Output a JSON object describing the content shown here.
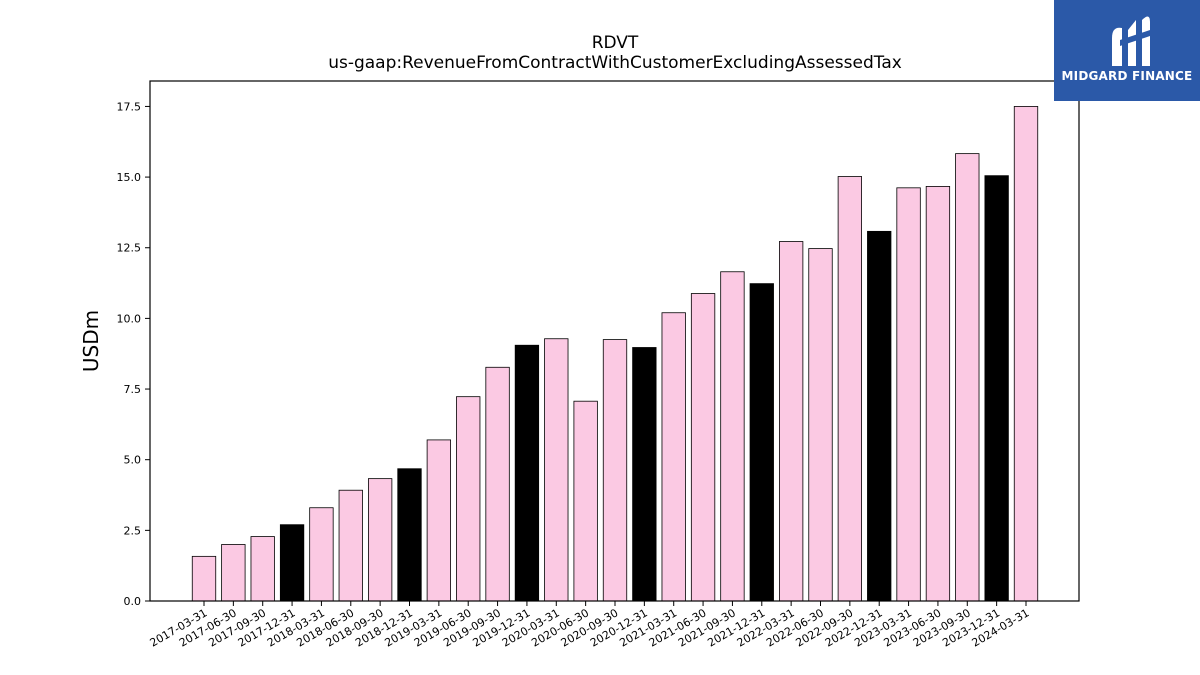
{
  "chart_data": {
    "type": "bar",
    "title": "RDVT",
    "subtitle": "us-gaap:RevenueFromContractWithCustomerExcludingAssessedTax",
    "ylabel": "USDm",
    "xlabel": "",
    "ylim": [
      0,
      18.4
    ],
    "yticks": [
      "0.0",
      "2.5",
      "5.0",
      "7.5",
      "10.0",
      "12.5",
      "15.0",
      "17.5"
    ],
    "grid": false,
    "colors": {
      "quarter": "#fbc9e3",
      "fiscal_year_end": "#000000",
      "edge": "#000000"
    },
    "categories": [
      "2017-03-31",
      "2017-06-30",
      "2017-09-30",
      "2017-12-31",
      "2018-03-31",
      "2018-06-30",
      "2018-09-30",
      "2018-12-31",
      "2019-03-31",
      "2019-06-30",
      "2019-09-30",
      "2019-12-31",
      "2020-03-31",
      "2020-06-30",
      "2020-09-30",
      "2020-12-31",
      "2021-03-31",
      "2021-06-30",
      "2021-09-30",
      "2021-12-31",
      "2022-03-31",
      "2022-06-30",
      "2022-09-30",
      "2022-12-31",
      "2023-03-31",
      "2023-06-30",
      "2023-09-30",
      "2023-12-31",
      "2024-03-31"
    ],
    "values": [
      1.58,
      2.0,
      2.28,
      2.7,
      3.3,
      3.92,
      4.33,
      4.68,
      5.7,
      7.23,
      8.27,
      9.05,
      9.28,
      7.07,
      9.25,
      8.97,
      10.2,
      10.88,
      11.65,
      11.23,
      12.72,
      12.47,
      15.02,
      13.08,
      14.62,
      14.67,
      15.83,
      15.05,
      17.5
    ],
    "highlight": [
      false,
      false,
      false,
      true,
      false,
      false,
      false,
      true,
      false,
      false,
      false,
      true,
      false,
      false,
      false,
      true,
      false,
      false,
      false,
      true,
      false,
      false,
      false,
      true,
      false,
      false,
      false,
      true,
      false
    ]
  },
  "logo": {
    "text": "MIDGARD FINANCE",
    "background": "#2b59a8"
  }
}
